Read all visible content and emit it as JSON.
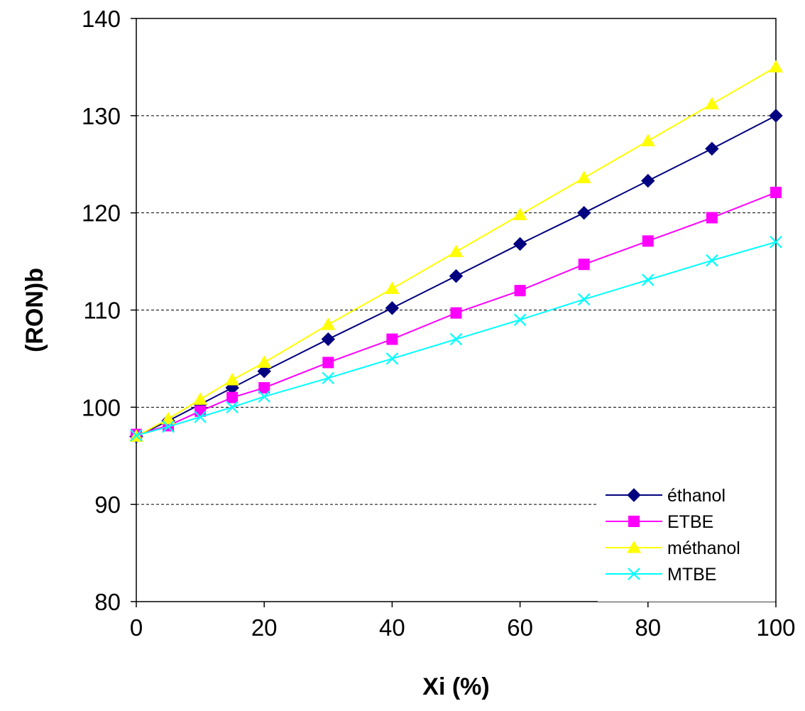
{
  "chart_data": {
    "type": "line",
    "title": "",
    "xlabel": "Xi (%)",
    "ylabel": "(RON)b",
    "xlim": [
      0,
      100
    ],
    "ylim": [
      80,
      140
    ],
    "x_ticks": [
      "0",
      "20",
      "40",
      "60",
      "80",
      "100"
    ],
    "y_ticks": [
      "80",
      "90",
      "100",
      "110",
      "120",
      "130",
      "140"
    ],
    "grid": "horizontal dashed",
    "legend_position": "bottom-right",
    "series": [
      {
        "name": "éthanol",
        "color": "#000080",
        "marker": "diamond",
        "x": [
          0,
          5,
          10,
          15,
          20,
          30,
          40,
          50,
          60,
          70,
          80,
          90,
          100
        ],
        "y": [
          97,
          98.6,
          100.3,
          102,
          103.7,
          107,
          110.2,
          113.5,
          116.8,
          120,
          123.3,
          126.6,
          130
        ]
      },
      {
        "name": "ETBE",
        "color": "#FF00FF",
        "marker": "square",
        "x": [
          0,
          5,
          10,
          15,
          20,
          30,
          40,
          50,
          60,
          70,
          80,
          90,
          100
        ],
        "y": [
          97.2,
          98.1,
          99.6,
          101,
          102,
          104.6,
          107,
          109.7,
          112,
          114.7,
          117.1,
          119.5,
          122.1
        ]
      },
      {
        "name": "méthanol",
        "color": "#FFFF00",
        "marker": "triangle",
        "x": [
          0,
          5,
          10,
          15,
          20,
          30,
          40,
          50,
          60,
          70,
          80,
          90,
          100
        ],
        "y": [
          97,
          98.8,
          100.8,
          102.8,
          104.6,
          108.5,
          112.2,
          116,
          119.8,
          123.6,
          127.4,
          131.2,
          135
        ]
      },
      {
        "name": "MTBE",
        "color": "#00FFFF",
        "marker": "x",
        "x": [
          0,
          5,
          10,
          15,
          20,
          30,
          40,
          50,
          60,
          70,
          80,
          90,
          100
        ],
        "y": [
          97.1,
          98,
          99,
          100,
          101.1,
          103,
          105,
          107,
          109,
          111.1,
          113.1,
          115.1,
          117
        ]
      }
    ]
  }
}
